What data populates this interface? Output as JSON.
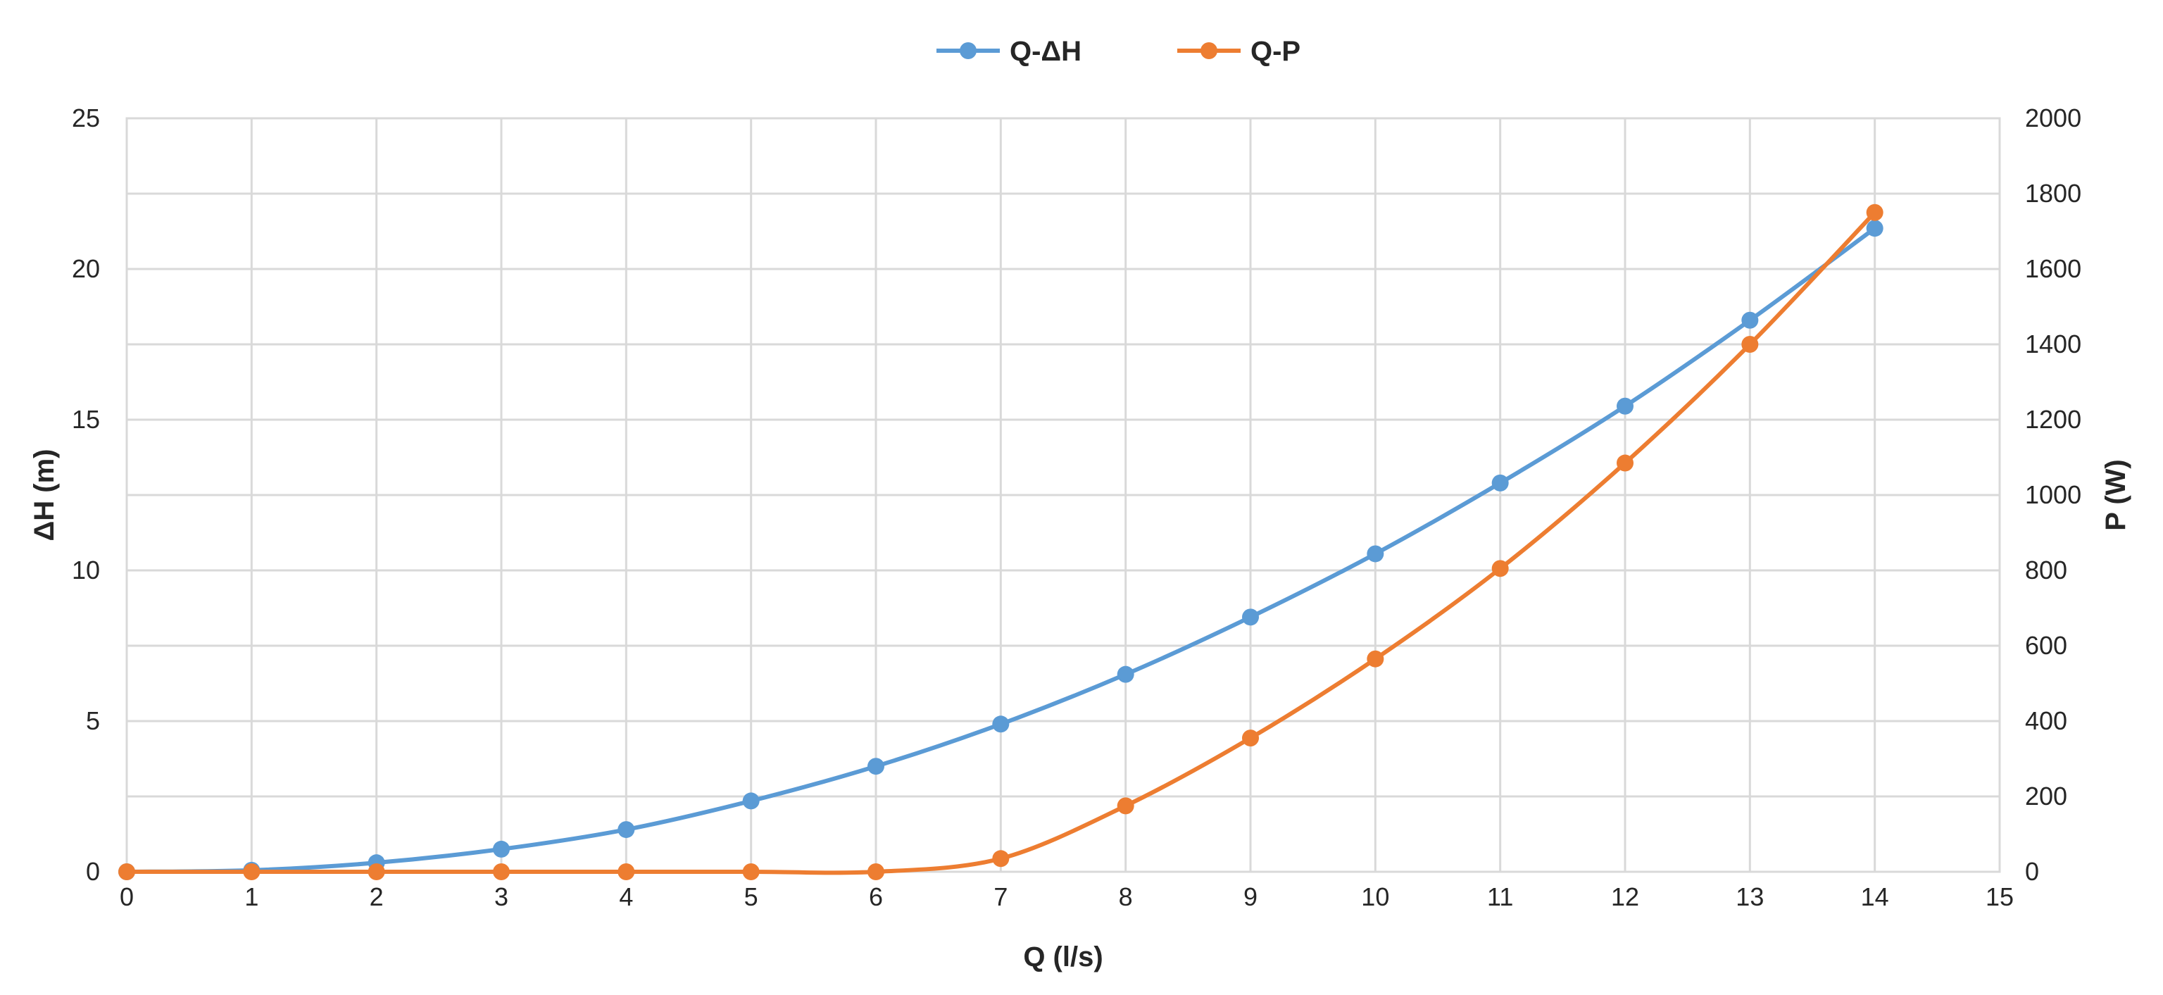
{
  "chart_data": {
    "type": "line",
    "title": "",
    "xlabel": "Q (l/s)",
    "ylabel": "ΔH (m)",
    "y2label": "P (W)",
    "xlim": [
      0,
      15
    ],
    "ylim": [
      0,
      25
    ],
    "y2lim": [
      0,
      2000
    ],
    "xticks": [
      "0",
      "1",
      "2",
      "3",
      "4",
      "5",
      "6",
      "7",
      "8",
      "9",
      "10",
      "11",
      "12",
      "13",
      "14",
      "15"
    ],
    "yticks": [
      "0",
      "5",
      "10",
      "15",
      "20",
      "25"
    ],
    "y2ticks": [
      "0",
      "200",
      "400",
      "600",
      "800",
      "1000",
      "1200",
      "1400",
      "1600",
      "1800",
      "2000"
    ],
    "grid": true,
    "legend_position": "top-center",
    "series": [
      {
        "name": "Q-ΔH",
        "axis": "left",
        "color": "#5b9bd5",
        "x": [
          0,
          1,
          2,
          3,
          4,
          5,
          6,
          7,
          8,
          9,
          10,
          11,
          12,
          13,
          14
        ],
        "values": [
          0,
          0.05,
          0.3,
          0.75,
          1.4,
          2.35,
          3.5,
          4.9,
          6.55,
          8.45,
          10.55,
          12.9,
          15.45,
          18.3,
          21.35
        ]
      },
      {
        "name": "Q-P",
        "axis": "right",
        "color": "#ed7d31",
        "x": [
          0,
          1,
          2,
          3,
          4,
          5,
          6,
          7,
          8,
          9,
          10,
          11,
          12,
          13,
          14
        ],
        "values": [
          0,
          0,
          0,
          0,
          0,
          0,
          0,
          35,
          175,
          355,
          565,
          805,
          1085,
          1400,
          1750
        ]
      }
    ]
  }
}
